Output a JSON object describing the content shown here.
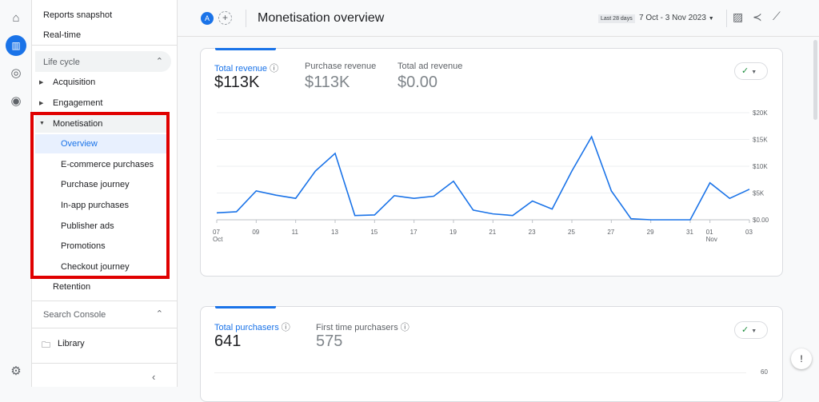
{
  "rail": {
    "icons": [
      "home-icon",
      "reports-icon",
      "explore-icon",
      "advertising-icon",
      "settings-icon"
    ]
  },
  "sidebar": {
    "reports_snapshot": "Reports snapshot",
    "realtime": "Real-time",
    "lifecycle": "Life cycle",
    "acquisition": "Acquisition",
    "engagement": "Engagement",
    "monetisation": "Monetisation",
    "monetisation_items": [
      "Overview",
      "E-commerce purchases",
      "Purchase journey",
      "In-app purchases",
      "Publisher ads",
      "Promotions",
      "Checkout journey"
    ],
    "retention": "Retention",
    "search_console": "Search Console",
    "library": "Library"
  },
  "header": {
    "avatar": "A",
    "add": "+",
    "title": "Monetisation overview",
    "range_label": "Last 28 days",
    "range": "7 Oct - 3 Nov 2023"
  },
  "card1": {
    "metrics": [
      {
        "label": "Total revenue",
        "value": "$113K"
      },
      {
        "label": "Purchase revenue",
        "value": "$113K"
      },
      {
        "label": "Total ad revenue",
        "value": "$0.00"
      }
    ]
  },
  "card2": {
    "metrics": [
      {
        "label": "Total purchasers",
        "value": "641"
      },
      {
        "label": "First time purchasers",
        "value": "575"
      }
    ],
    "ytick_top": "60"
  },
  "chart_data": {
    "type": "line",
    "x": [
      "07",
      "08",
      "09",
      "10",
      "11",
      "12",
      "13",
      "14",
      "15",
      "16",
      "17",
      "18",
      "19",
      "20",
      "21",
      "22",
      "23",
      "24",
      "25",
      "26",
      "27",
      "28",
      "29",
      "30",
      "31",
      "01",
      "02",
      "03"
    ],
    "x_tick_labels": [
      "07",
      "09",
      "11",
      "13",
      "15",
      "17",
      "19",
      "21",
      "23",
      "25",
      "27",
      "29",
      "31",
      "01",
      "03"
    ],
    "x_month_labels": {
      "07": "Oct",
      "01": "Nov"
    },
    "values": [
      1300,
      1500,
      5400,
      4600,
      4000,
      9100,
      12400,
      800,
      900,
      4500,
      4000,
      4400,
      7200,
      1800,
      1100,
      800,
      3500,
      2000,
      9100,
      15500,
      5400,
      200,
      0,
      0,
      0,
      6900,
      4000,
      5700
    ],
    "yticks": [
      "$0.00",
      "$5K",
      "$10K",
      "$15K",
      "$20K"
    ],
    "ylim": [
      0,
      20000
    ],
    "grid": true,
    "color": "#1a73e8"
  }
}
